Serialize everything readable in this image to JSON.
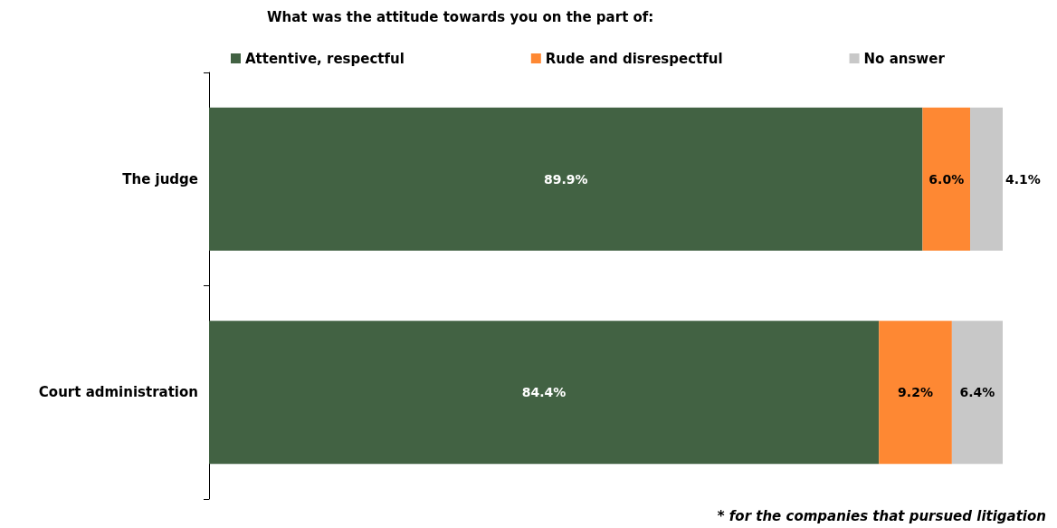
{
  "chart_data": {
    "type": "bar",
    "orientation": "horizontal",
    "stacked": true,
    "title": "What was the attitude towards you on the part of:",
    "categories": [
      "The judge",
      "Court administration"
    ],
    "series": [
      {
        "name": "Attentive, respectful",
        "color": "#426243",
        "values": [
          89.9,
          84.4
        ],
        "value_labels": [
          "89.9%",
          "84.4%"
        ]
      },
      {
        "name": "Rude and disrespectful",
        "color": "#fe8833",
        "values": [
          6.0,
          9.2
        ],
        "value_labels": [
          "6.0%",
          "9.2%"
        ]
      },
      {
        "name": "No answer",
        "color": "#c8c8c8",
        "values": [
          4.1,
          6.4
        ],
        "value_labels": [
          "4.1%",
          "6.4%"
        ]
      }
    ],
    "legend": "top",
    "annotations": [
      "* for the companies that pursued litigation"
    ]
  }
}
